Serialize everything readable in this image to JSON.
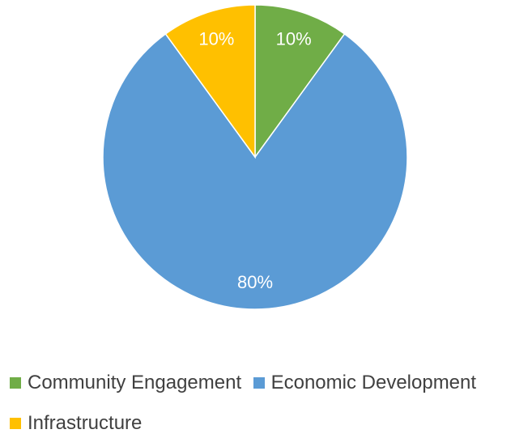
{
  "chart_data": {
    "type": "pie",
    "title": "",
    "categories": [
      "Community Engagement",
      "Economic Development",
      "Infrastructure"
    ],
    "values": [
      10,
      80,
      10
    ],
    "labels": [
      "10%",
      "80%",
      "10%"
    ],
    "colors": [
      "#70ad47",
      "#5b9bd5",
      "#ffc000"
    ],
    "legend_position": "bottom"
  },
  "legend": {
    "items": [
      {
        "label": "Community Engagement",
        "color": "#70ad47"
      },
      {
        "label": "Economic Development",
        "color": "#5b9bd5"
      },
      {
        "label": "Infrastructure",
        "color": "#ffc000"
      }
    ]
  }
}
